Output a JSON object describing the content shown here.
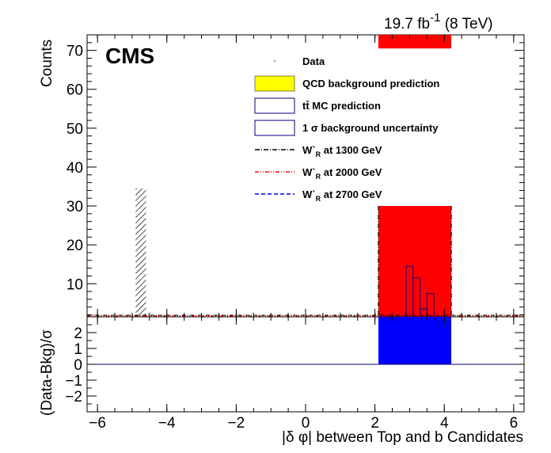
{
  "chart_data": [
    {
      "type": "bar",
      "panel": "main",
      "lumi_label": "19.7 fb",
      "lumi_exp": "-1",
      "energy_label": " (8 TeV)",
      "experiment_label": "CMS",
      "ylabel": "Counts",
      "xlim": [
        -6.3,
        6.3
      ],
      "ylim": [
        1.5,
        74
      ],
      "y_ticks": [
        10,
        20,
        30,
        40,
        50,
        60,
        70
      ],
      "y_tick_labels": [
        "10",
        "20",
        "30",
        "40",
        "50",
        "60",
        "70"
      ],
      "legend": {
        "position": "top-right",
        "entries": [
          {
            "label": "Data",
            "style": "marker"
          },
          {
            "label": "QCD background prediction",
            "style": "fill-yellow"
          },
          {
            "label": "tt̄ MC prediction",
            "style": "box-blue"
          },
          {
            "label": "1 σ background uncertainty",
            "style": "box-blue"
          },
          {
            "label": "W`R at 1300 GeV",
            "style": "line-dashdot-black",
            "main": "W`",
            "sub": "R",
            "rest": " at 1300 GeV"
          },
          {
            "label": "W`R at 2000 GeV",
            "style": "line-dashdotdot-red",
            "main": "W`",
            "sub": "R",
            "rest": " at 2000 GeV"
          },
          {
            "label": "W`R at 2700 GeV",
            "style": "line-dash-blue",
            "main": "W`",
            "sub": "R",
            "rest": " at 2700 GeV"
          }
        ]
      },
      "hatched_uncertainty": {
        "x": [
          -4.9,
          -4.6
        ],
        "y_top": 34.5
      },
      "signal_region": {
        "x": [
          2.1,
          4.2
        ],
        "color": "#ff0000",
        "y_bottom_visible": 30,
        "y_top_visible": 74,
        "gap": [
          30,
          70.5
        ]
      },
      "ttbar_bins": [
        {
          "x": [
            2.9,
            3.1
          ],
          "y": 14.5
        },
        {
          "x": [
            3.1,
            3.3
          ],
          "y": 11.5
        },
        {
          "x": [
            3.3,
            3.5
          ],
          "y": 3.5
        },
        {
          "x": [
            3.5,
            3.7
          ],
          "y": 7.5
        }
      ],
      "colors": {
        "signal": "#ff0000",
        "ttbar": "#00007f",
        "ratio": "#0000ff"
      }
    },
    {
      "type": "bar",
      "panel": "ratio",
      "ylabel": "(Data-Bkg)/σ",
      "xlabel": "|δ φ| between Top and b Candidates",
      "xlim": [
        -6.3,
        6.3
      ],
      "ylim": [
        -3,
        3
      ],
      "y_ticks": [
        -2,
        -1,
        0,
        1,
        2
      ],
      "y_tick_labels": [
        "−2",
        "−1",
        "0",
        "1",
        "2"
      ],
      "x_ticks": [
        -6,
        -4,
        -2,
        0,
        2,
        4,
        6
      ],
      "x_tick_labels": [
        "−6",
        "−4",
        "−2",
        "0",
        "2",
        "4",
        "6"
      ],
      "ratio_box": {
        "x": [
          2.1,
          4.2
        ],
        "y": [
          0,
          3
        ]
      }
    }
  ]
}
